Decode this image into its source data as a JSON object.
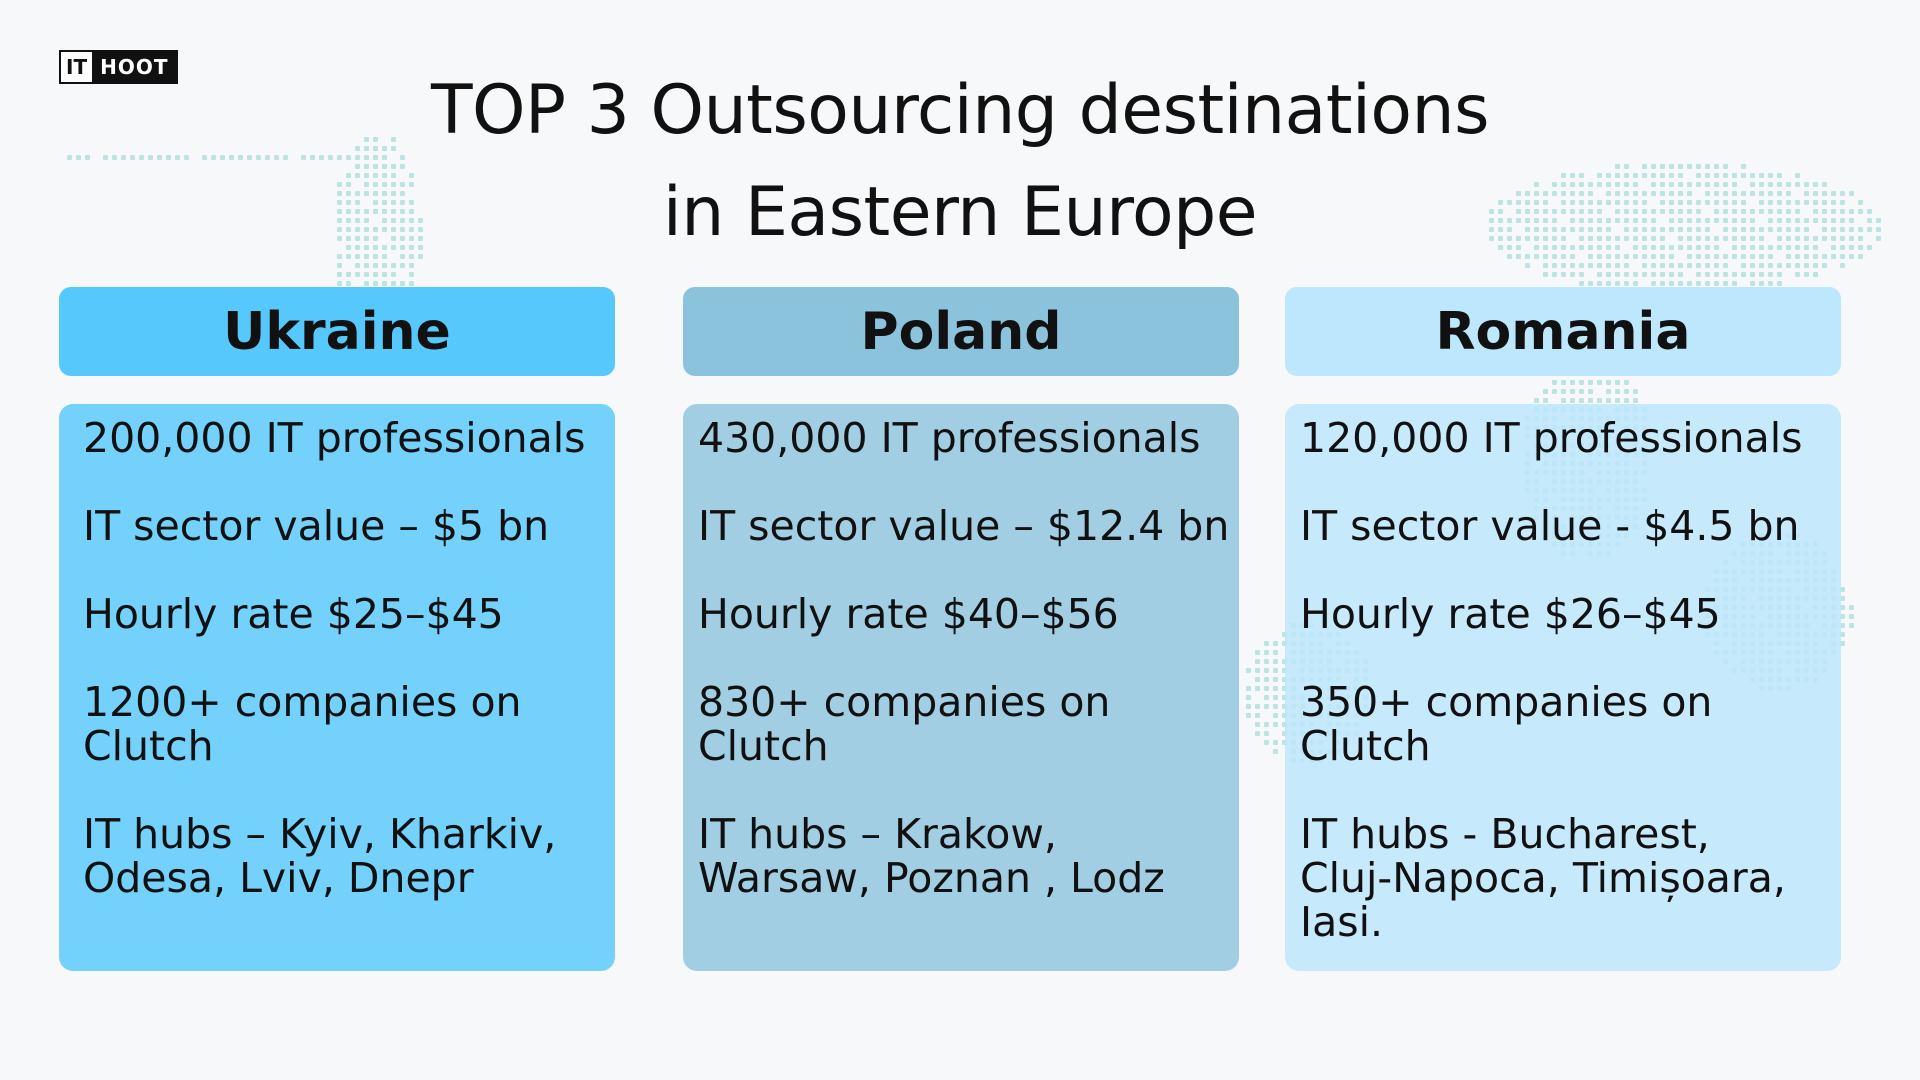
{
  "logo": {
    "it": "IT",
    "hoot": "HOOT"
  },
  "title": {
    "line1": "TOP 3 Outsourcing destinations",
    "line2": "in Eastern Europe"
  },
  "colors": {
    "ukraine": "#56c8fb",
    "poland": "#8bc2dc",
    "romania": "#bde7fd",
    "map_dots": "#a9dcda"
  },
  "icons": [
    "world-map-dots"
  ],
  "countries": [
    {
      "name": "Ukraine",
      "facts": [
        "200,000 IT professionals",
        "IT sector value – $5 bn",
        "Hourly rate $25–$45",
        "1200+ companies on\nClutch",
        "IT hubs – Kyiv, Kharkiv,\nOdesa, Lviv, Dnepr"
      ]
    },
    {
      "name": "Poland",
      "facts": [
        "430,000 IT professionals",
        "IT sector value – $12.4 bn",
        "Hourly rate $40–$56",
        "830+ companies on\nClutch",
        "IT hubs – Krakow,\nWarsaw, Poznan , Lodz"
      ]
    },
    {
      "name": "Romania",
      "facts": [
        "120,000 IT professionals",
        "IT sector value - $4.5 bn",
        "Hourly rate $26–$45",
        "350+ companies on\nClutch",
        "IT hubs - Bucharest,\nCluj-Napoca, Timișoara,\nIasi."
      ]
    }
  ]
}
